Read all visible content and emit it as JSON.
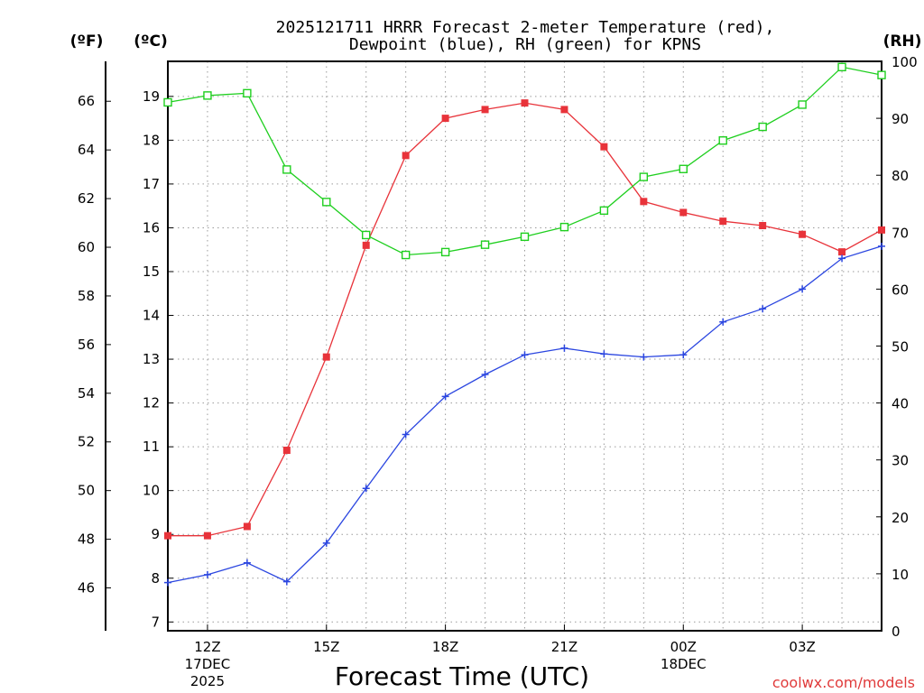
{
  "chart_data": {
    "type": "line",
    "title_line1": "2025121711 HRRR Forecast 2-meter Temperature (red),",
    "title_line2": "Dewpoint (blue), RH (green) for KPNS",
    "xlabel": "Forecast Time (UTC)",
    "unit_f": "(ºF)",
    "unit_c": "(ºC)",
    "unit_rh": "(RH)",
    "watermark": "coolwx.com/models",
    "x": [
      11,
      12,
      13,
      14,
      15,
      16,
      17,
      18,
      19,
      20,
      21,
      22,
      23,
      24,
      25,
      26,
      27,
      28,
      29
    ],
    "xlim": [
      11,
      29
    ],
    "xticks": [
      {
        "x": 12,
        "lines": [
          "12Z",
          "17DEC",
          "2025"
        ]
      },
      {
        "x": 15,
        "lines": [
          "15Z"
        ]
      },
      {
        "x": 18,
        "lines": [
          "18Z"
        ]
      },
      {
        "x": 21,
        "lines": [
          "21Z"
        ]
      },
      {
        "x": 24,
        "lines": [
          "00Z",
          "18DEC"
        ]
      },
      {
        "x": 27,
        "lines": [
          "03Z"
        ]
      }
    ],
    "ylim_c": [
      6.8,
      19.8
    ],
    "yticks_c": [
      7,
      8,
      9,
      10,
      11,
      12,
      13,
      14,
      15,
      16,
      17,
      18,
      19
    ],
    "yticks_f": [
      46,
      48,
      50,
      52,
      54,
      56,
      58,
      60,
      62,
      64,
      66
    ],
    "ylim_rh": [
      0,
      100
    ],
    "yticks_rh": [
      0,
      10,
      20,
      30,
      40,
      50,
      60,
      70,
      80,
      90,
      100
    ],
    "series": [
      {
        "name": "Temperature",
        "axis": "c",
        "color": "#e8333a",
        "marker": "filled-square",
        "values": [
          8.97,
          8.97,
          9.18,
          10.92,
          13.05,
          15.6,
          17.65,
          18.5,
          18.7,
          18.85,
          18.7,
          17.85,
          16.6,
          16.35,
          16.15,
          16.05,
          15.85,
          15.45,
          15.95
        ]
      },
      {
        "name": "Dewpoint",
        "axis": "c",
        "color": "#2b46e0",
        "marker": "plus",
        "values": [
          7.9,
          8.08,
          8.35,
          7.92,
          8.8,
          10.05,
          11.28,
          12.15,
          12.65,
          13.1,
          13.25,
          13.12,
          13.05,
          13.1,
          13.85,
          14.15,
          14.6,
          15.3,
          15.58
        ]
      },
      {
        "name": "RH",
        "axis": "rh",
        "color": "#1fcf1f",
        "marker": "open-square",
        "values": [
          92.8,
          94,
          94.4,
          81,
          75.3,
          69.5,
          66,
          66.5,
          67.8,
          69.2,
          70.9,
          73.8,
          79.7,
          81.1,
          86.1,
          88.5,
          92.4,
          99,
          97.6
        ]
      }
    ]
  }
}
